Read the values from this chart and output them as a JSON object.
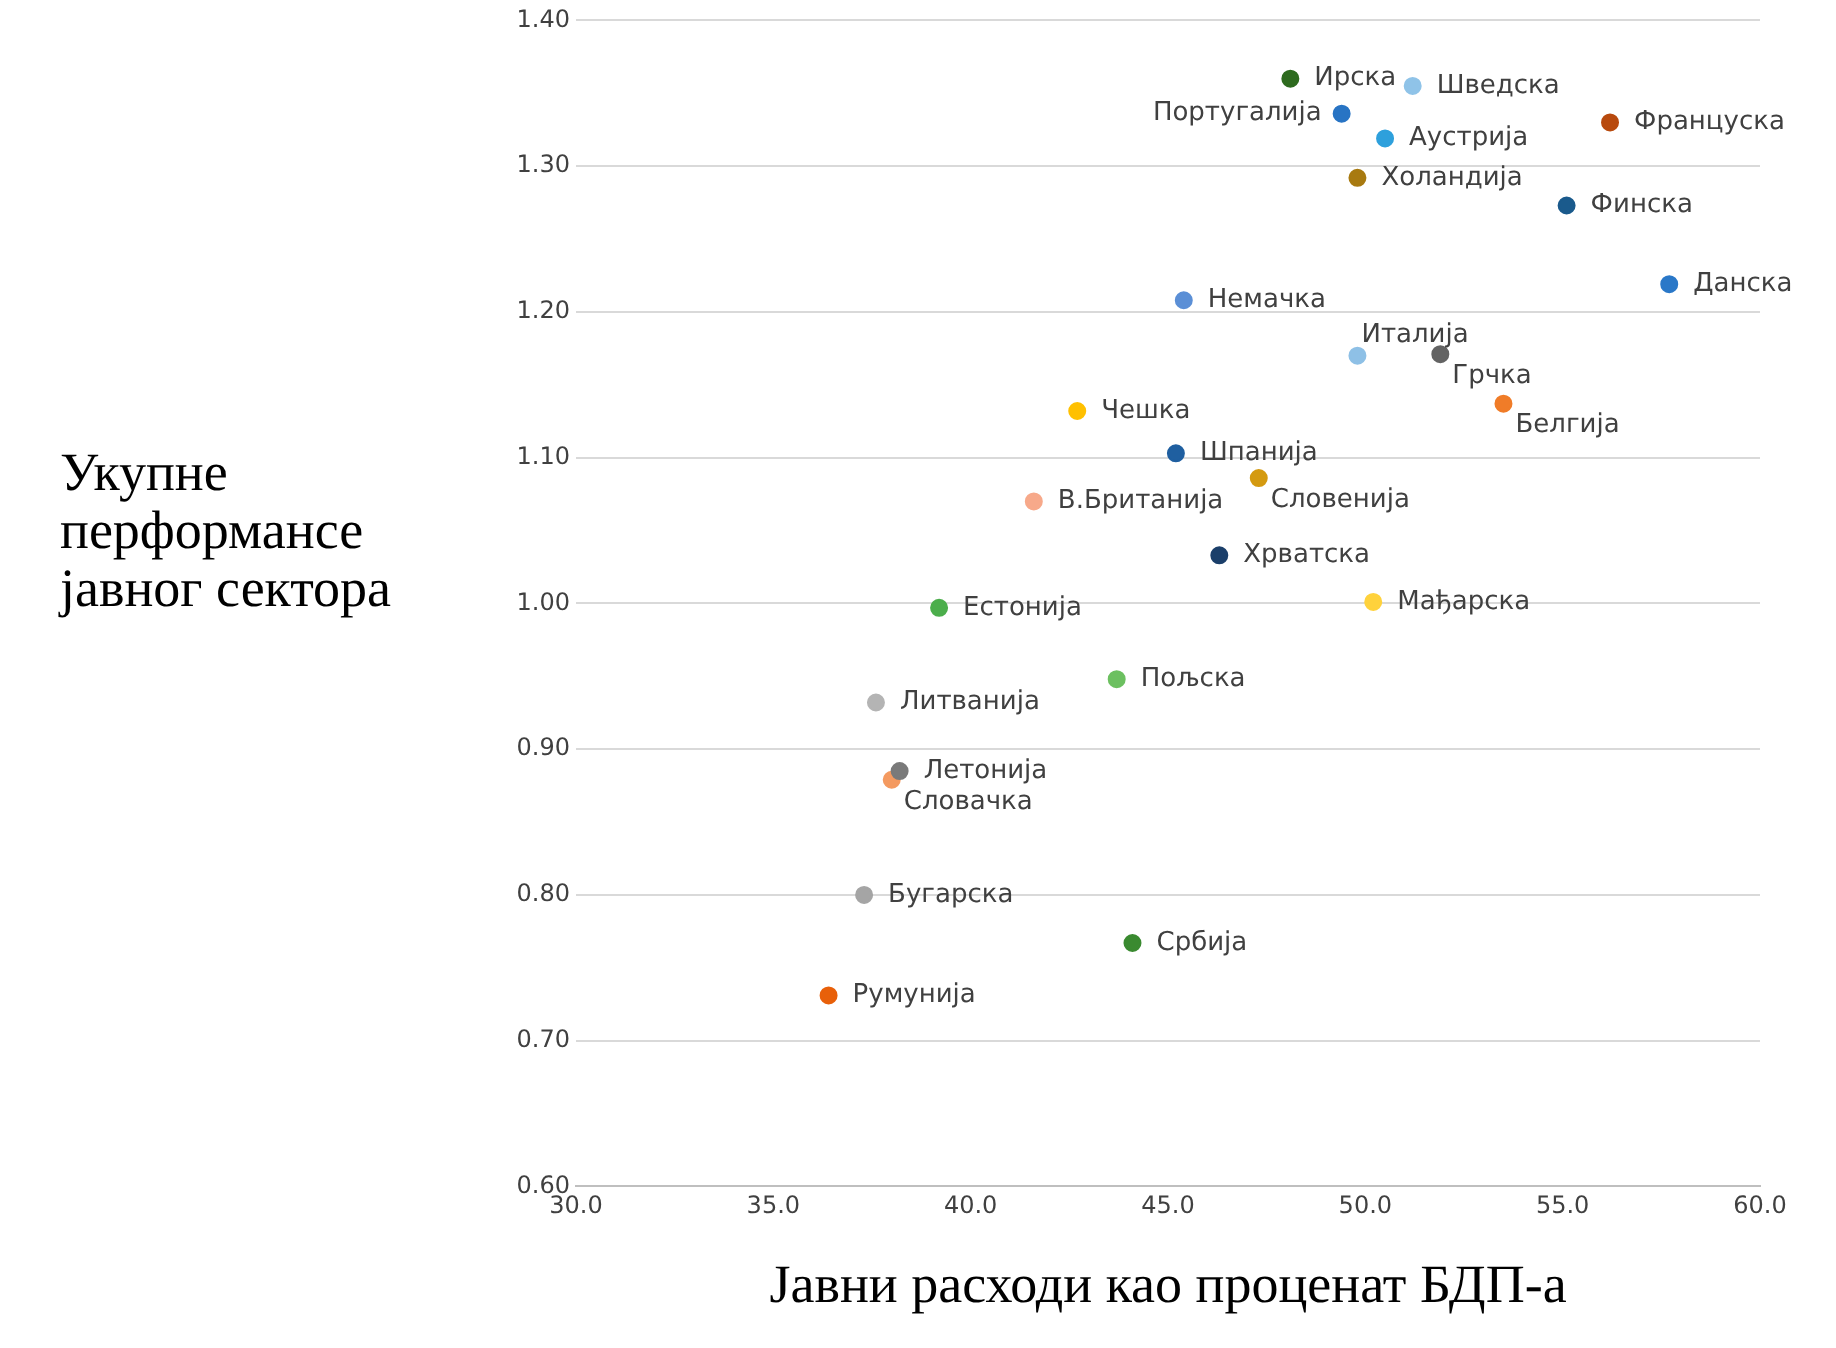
{
  "chart_data": {
    "type": "scatter",
    "xlabel": "Јавни расходи као проценат БДП-а",
    "ylabel": "Укупне\nперформансе\nјавног сектора",
    "xlim": [
      30,
      60
    ],
    "xticks": [
      {
        "value": 30,
        "label": "30.0"
      },
      {
        "value": 35,
        "label": "35.0"
      },
      {
        "value": 40,
        "label": "40.0"
      },
      {
        "value": 45,
        "label": "45.0"
      },
      {
        "value": 50,
        "label": "50.0"
      },
      {
        "value": 55,
        "label": "55.0"
      },
      {
        "value": 60,
        "label": "60.0"
      }
    ],
    "ylim": [
      0.6,
      1.4
    ],
    "yticks": [
      {
        "value": 0.6,
        "label": "0.60"
      },
      {
        "value": 0.7,
        "label": "0.70"
      },
      {
        "value": 0.8,
        "label": "0.80"
      },
      {
        "value": 0.9,
        "label": "0.90"
      },
      {
        "value": 1.0,
        "label": "1.00"
      },
      {
        "value": 1.1,
        "label": "1.10"
      },
      {
        "value": 1.2,
        "label": "1.20"
      },
      {
        "value": 1.3,
        "label": "1.30"
      },
      {
        "value": 1.4,
        "label": "1.40"
      }
    ],
    "grid": "y",
    "legend": false,
    "marker": "circle",
    "series": [
      {
        "name": "Ирска",
        "color": "#2e6b1f",
        "x": [
          48.1
        ],
        "values": [
          1.36
        ]
      },
      {
        "name": "Шведска",
        "color": "#8fc3e8",
        "x": [
          51.2
        ],
        "values": [
          1.355
        ]
      },
      {
        "name": "Португалија",
        "color": "#2874c4",
        "x": [
          49.4
        ],
        "values": [
          1.336
        ]
      },
      {
        "name": "Француска",
        "color": "#b84a0e",
        "x": [
          56.2
        ],
        "values": [
          1.33
        ]
      },
      {
        "name": "Аустрија",
        "color": "#2ea0dc",
        "x": [
          50.5
        ],
        "values": [
          1.319
        ]
      },
      {
        "name": "Холандија",
        "color": "#a87a10",
        "x": [
          49.8
        ],
        "values": [
          1.292
        ]
      },
      {
        "name": "Финска",
        "color": "#1a5a8c",
        "x": [
          55.1
        ],
        "values": [
          1.273
        ]
      },
      {
        "name": "Данска",
        "color": "#2a78c8",
        "x": [
          57.7
        ],
        "values": [
          1.219
        ]
      },
      {
        "name": "Немачка",
        "color": "#5b8fd6",
        "x": [
          45.4
        ],
        "values": [
          1.208
        ]
      },
      {
        "name": "Италија",
        "color": "#8ec0e6",
        "x": [
          49.8
        ],
        "values": [
          1.17
        ]
      },
      {
        "name": "Грчка",
        "color": "#636363",
        "x": [
          51.9
        ],
        "values": [
          1.171
        ]
      },
      {
        "name": "Белгија",
        "color": "#f07c28",
        "x": [
          53.5
        ],
        "values": [
          1.137
        ]
      },
      {
        "name": "Чешка",
        "color": "#ffc000",
        "x": [
          42.7
        ],
        "values": [
          1.132
        ]
      },
      {
        "name": "Шпанија",
        "color": "#1f5fa0",
        "x": [
          45.2
        ],
        "values": [
          1.103
        ]
      },
      {
        "name": "Словенија",
        "color": "#d49a10",
        "x": [
          47.3
        ],
        "values": [
          1.086
        ]
      },
      {
        "name": "В.Британија",
        "color": "#f7a98a",
        "x": [
          41.6
        ],
        "values": [
          1.07
        ]
      },
      {
        "name": "Хрватска",
        "color": "#1b3f6a",
        "x": [
          46.3
        ],
        "values": [
          1.033
        ]
      },
      {
        "name": "Естонија",
        "color": "#4cae4c",
        "x": [
          39.2
        ],
        "values": [
          0.997
        ]
      },
      {
        "name": "Мађарска",
        "color": "#ffd23c",
        "x": [
          50.2
        ],
        "values": [
          1.001
        ]
      },
      {
        "name": "Пољска",
        "color": "#6cc060",
        "x": [
          43.7
        ],
        "values": [
          0.948
        ]
      },
      {
        "name": "Литванија",
        "color": "#b4b4b4",
        "x": [
          37.6
        ],
        "values": [
          0.932
        ]
      },
      {
        "name": "Летонија",
        "color": "#7a7a7a",
        "x": [
          38.2
        ],
        "values": [
          0.885
        ]
      },
      {
        "name": "Словачка",
        "color": "#f49a60",
        "x": [
          38.0
        ],
        "values": [
          0.879
        ]
      },
      {
        "name": "Бугарска",
        "color": "#a5a5a5",
        "x": [
          37.3
        ],
        "values": [
          0.8
        ]
      },
      {
        "name": "Србија",
        "color": "#3a8a30",
        "x": [
          44.1
        ],
        "values": [
          0.767
        ]
      },
      {
        "name": "Румунија",
        "color": "#e8600a",
        "x": [
          36.4
        ],
        "values": [
          0.731
        ]
      }
    ]
  }
}
